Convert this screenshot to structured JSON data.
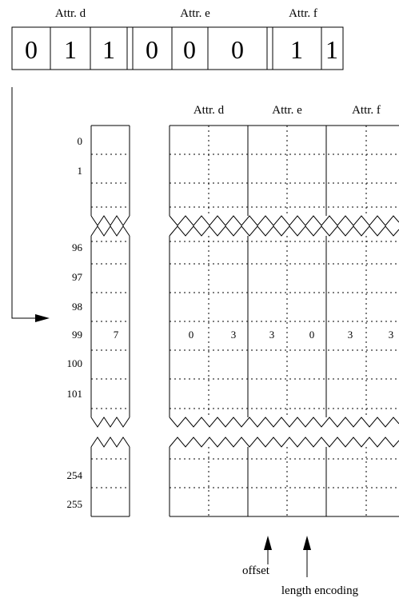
{
  "bitvector": {
    "groups": [
      {
        "label": "Attr. d",
        "bits": [
          "0",
          "1",
          "1"
        ]
      },
      {
        "label": "Attr. e",
        "bits": [
          "0",
          "0",
          "0"
        ]
      },
      {
        "label": "Attr. f",
        "bits": [
          "1",
          "1"
        ]
      }
    ]
  },
  "table": {
    "headers": [
      "Attr. d",
      "Attr. e",
      "Attr. f"
    ],
    "row_indices": [
      "0",
      "1",
      "96",
      "97",
      "98",
      "99",
      "100",
      "101",
      "254",
      "255"
    ],
    "highlight_row": {
      "index": "99",
      "code_length": "7",
      "values": [
        "0",
        "3",
        "3",
        "0",
        "3",
        "3"
      ]
    }
  },
  "annotations": {
    "offset": "offset",
    "length_encoding": "length encoding"
  }
}
